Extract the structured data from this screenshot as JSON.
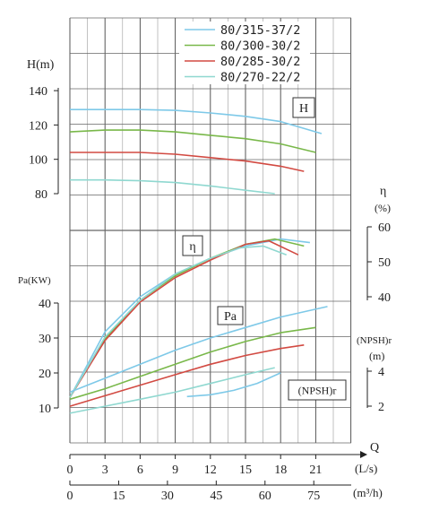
{
  "chart_data": {
    "type": "line",
    "legend": {
      "placement": "top-center",
      "entries": [
        {
          "label": "80/315-37/2",
          "color": "#7ec9e8"
        },
        {
          "label": "80/300-30/2",
          "color": "#79b84a"
        },
        {
          "label": "80/285-30/2",
          "color": "#d24a42"
        },
        {
          "label": "80/270-22/2",
          "color": "#8fd8d0"
        }
      ]
    },
    "grid": true,
    "x_axis_ls": {
      "label": "Q",
      "unit": "(L/s)",
      "ticks": [
        "0",
        "3",
        "6",
        "9",
        "12",
        "15",
        "18",
        "21"
      ],
      "range": [
        0,
        24
      ]
    },
    "x_axis_m3h": {
      "unit": "(m³/h)",
      "ticks": [
        "0",
        "15",
        "30",
        "45",
        "60",
        "75"
      ]
    },
    "panels": {
      "head": {
        "box_label": "H",
        "axis_label": "H(m)",
        "ticks": [
          "80",
          "100",
          "120",
          "140"
        ],
        "range": [
          78,
          142
        ],
        "series": [
          {
            "name": "80/315-37/2",
            "x": [
              0,
              3,
              6,
              9,
              12,
              15,
              18,
              21.5
            ],
            "y": [
              129,
              129,
              129,
              128.5,
              127,
              125,
              122,
              115
            ]
          },
          {
            "name": "80/300-30/2",
            "x": [
              0,
              3,
              6,
              9,
              12,
              15,
              18,
              21
            ],
            "y": [
              116,
              117,
              117,
              116,
              114,
              112,
              109,
              104
            ]
          },
          {
            "name": "80/285-30/2",
            "x": [
              0,
              3,
              6,
              9,
              12,
              15,
              18,
              20
            ],
            "y": [
              104,
              104,
              104,
              103,
              101,
              99,
              96,
              93
            ]
          },
          {
            "name": "80/270-22/2",
            "x": [
              0,
              3,
              6,
              9,
              12,
              15,
              17.5
            ],
            "y": [
              88,
              88,
              87.5,
              86.5,
              84.5,
              82,
              80
            ]
          }
        ]
      },
      "efficiency": {
        "box_label": "η",
        "axis_label": "η",
        "axis_unit": "(%)",
        "ticks": [
          "40",
          "50",
          "60"
        ],
        "range": [
          40,
          60
        ],
        "series": [
          {
            "name": "80/315-37/2",
            "x": [
              0,
              3,
              6,
              9,
              12,
              15,
              18,
              20.5
            ],
            "y": [
              11.2,
              30,
              40,
              46.5,
              51,
              54.5,
              56.5,
              55.5
            ]
          },
          {
            "name": "80/300-30/2",
            "x": [
              0,
              3,
              6,
              9,
              12,
              15,
              17.5,
              20
            ],
            "y": [
              11.2,
              28,
              39,
              46,
              51,
              55,
              56.5,
              54.5
            ]
          },
          {
            "name": "80/285-30/2",
            "x": [
              0,
              3,
              6,
              9,
              12,
              15,
              17,
              19.5
            ],
            "y": [
              11.2,
              27.5,
              38.5,
              45.5,
              50.5,
              55,
              56,
              52
            ]
          },
          {
            "name": "80/270-22/2",
            "x": [
              0,
              3,
              6,
              9,
              12,
              14.5,
              16.5,
              18.5
            ],
            "y": [
              11.2,
              28.5,
              39,
              46.5,
              51,
              54,
              54.5,
              52
            ]
          }
        ]
      },
      "power": {
        "box_label": "Pa",
        "axis_label": "Pa(KW)",
        "ticks": [
          "10",
          "20",
          "30",
          "40"
        ],
        "range": [
          0,
          40
        ],
        "series": [
          {
            "name": "80/315-37/2",
            "x": [
              0,
              3,
              6,
              9,
              12,
              15,
              18,
              22
            ],
            "y": [
              14.5,
              18.5,
              22.5,
              26.5,
              30,
              33,
              36,
              39
            ]
          },
          {
            "name": "80/300-30/2",
            "x": [
              0,
              3,
              6,
              9,
              12,
              15,
              18,
              21
            ],
            "y": [
              12.5,
              15.5,
              19,
              22.5,
              26,
              29,
              31.5,
              33
            ]
          },
          {
            "name": "80/285-30/2",
            "x": [
              0,
              3,
              6,
              9,
              12,
              15,
              18,
              20
            ],
            "y": [
              10.5,
              13.5,
              16.5,
              19.5,
              22.5,
              25,
              27,
              28
            ]
          },
          {
            "name": "80/270-22/2",
            "x": [
              0,
              3,
              6,
              9,
              12,
              15,
              17.5
            ],
            "y": [
              8.5,
              10.5,
              12.5,
              14.5,
              17,
              19.5,
              21.5
            ]
          }
        ]
      },
      "npsh": {
        "box_label": "(NPSH)r",
        "axis_label": "(NPSH)r",
        "axis_unit": "(m)",
        "ticks": [
          "2",
          "4"
        ],
        "range": [
          1.3,
          4.7
        ],
        "series": [
          {
            "name": "80/315-37/2",
            "x": [
              10,
              12,
              14,
              16,
              18
            ],
            "y": [
              2.55,
              2.65,
              2.9,
              3.3,
              3.9
            ]
          }
        ]
      }
    }
  }
}
